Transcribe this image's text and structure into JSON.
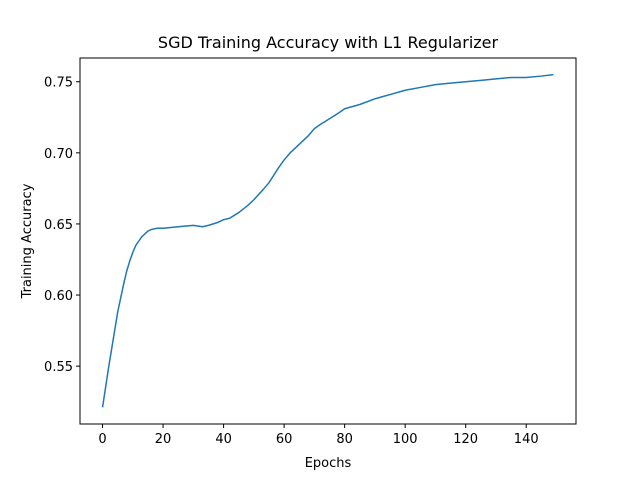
{
  "chart_data": {
    "type": "line",
    "title": "SGD Training Accuracy with L1 Regularizer",
    "xlabel": "Epochs",
    "ylabel": "Training Accuracy",
    "x": [
      0,
      1,
      2,
      3,
      4,
      5,
      6,
      7,
      8,
      9,
      10,
      11,
      12,
      13,
      14,
      15,
      16,
      18,
      20,
      25,
      30,
      33,
      35,
      38,
      40,
      42,
      45,
      48,
      50,
      53,
      55,
      58,
      60,
      62,
      64,
      66,
      68,
      70,
      72,
      75,
      78,
      80,
      85,
      90,
      95,
      100,
      105,
      110,
      115,
      120,
      125,
      130,
      135,
      140,
      145,
      149
    ],
    "series": [
      {
        "color": "#1f77b4",
        "values": [
          0.521,
          0.535,
          0.549,
          0.562,
          0.575,
          0.588,
          0.598,
          0.608,
          0.617,
          0.624,
          0.63,
          0.635,
          0.638,
          0.641,
          0.643,
          0.645,
          0.646,
          0.647,
          0.647,
          0.648,
          0.649,
          0.648,
          0.649,
          0.651,
          0.653,
          0.654,
          0.658,
          0.663,
          0.667,
          0.674,
          0.679,
          0.689,
          0.695,
          0.7,
          0.704,
          0.708,
          0.712,
          0.717,
          0.72,
          0.724,
          0.728,
          0.731,
          0.734,
          0.738,
          0.741,
          0.744,
          0.746,
          0.748,
          0.749,
          0.75,
          0.751,
          0.752,
          0.753,
          0.753,
          0.754,
          0.755
        ]
      }
    ],
    "xlim": [
      -7.45,
      156.45
    ],
    "ylim": [
      0.5093,
      0.7667
    ],
    "xticks": [
      0,
      20,
      40,
      60,
      80,
      100,
      120,
      140
    ],
    "yticks": [
      0.55,
      {
        "value": 0.6,
        "label": "0.60"
      },
      0.65,
      {
        "value": 0.7,
        "label": "0.70"
      },
      0.75
    ],
    "grid": false
  }
}
